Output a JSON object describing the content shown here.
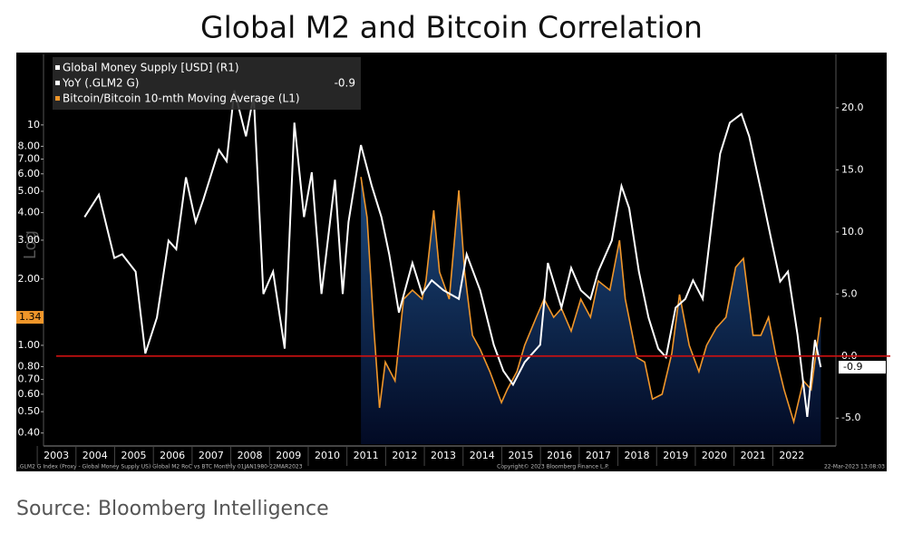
{
  "chart_data": {
    "type": "line",
    "title": "Global M2 and Bitcoin Correlation",
    "source": "Source: Bloomberg Intelligence",
    "footer_left": ".GLM2 G Index (Proxy - Global Money Supply US) Global M2 RoC vs BTC  Monthly 01JAN1980-22MAR2023",
    "footer_center": "Copyright© 2023 Bloomberg Finance L.P.",
    "footer_right": "22-Mar-2023 13:08:03",
    "ylabel": "Log",
    "legend_header": "Global Money Supply [USD] (R1)",
    "log_y": true,
    "xlim": [
      2002.67,
      2023.14
    ],
    "xticks": [
      2003,
      2004,
      2005,
      2006,
      2007,
      2008,
      2009,
      2010,
      2011,
      2012,
      2013,
      2014,
      2015,
      2016,
      2017,
      2018,
      2019,
      2020,
      2021,
      2022
    ],
    "ylim": [
      0.356,
      20.9
    ],
    "yticks": [
      {
        "value": 0.4,
        "label": "0.40"
      },
      {
        "value": 0.5,
        "label": "0.50"
      },
      {
        "value": 0.6,
        "label": "0.60"
      },
      {
        "value": 0.7,
        "label": "0.70"
      },
      {
        "value": 0.8,
        "label": "0.80"
      },
      {
        "value": 1,
        "label": "1.00"
      },
      {
        "value": 2,
        "label": "2.00"
      },
      {
        "value": 3,
        "label": "3.00"
      },
      {
        "value": 4,
        "label": "4.00"
      },
      {
        "value": 5,
        "label": "5.00"
      },
      {
        "value": 6,
        "label": "6.00"
      },
      {
        "value": 7,
        "label": "7.00"
      },
      {
        "value": 8,
        "label": "8.00"
      },
      10
    ],
    "y2lim": [
      -7.1,
      24.3
    ],
    "y2ticks": [
      {
        "value": -5,
        "label": "-5.0"
      },
      {
        "value": 0,
        "label": "0.0"
      },
      {
        "value": 5,
        "label": "5.0"
      },
      {
        "value": 10,
        "label": "10.0"
      },
      {
        "value": 15,
        "label": "15.0"
      },
      {
        "value": 20,
        "label": "20.0"
      }
    ],
    "hline": {
      "axis": "y2",
      "value": 0,
      "color": "#cc1111"
    },
    "legend": "upper left",
    "series": [
      {
        "name": "YoY (.GLM2 G)",
        "color": "#ffffff",
        "axis": "y2",
        "current": -0.9,
        "x": [
          2003.73,
          2004.1,
          2004.5,
          2004.7,
          2005.05,
          2005.3,
          2005.6,
          2005.9,
          2006.1,
          2006.35,
          2006.6,
          2006.8,
          2007.2,
          2007.4,
          2007.6,
          2007.9,
          2008.1,
          2008.35,
          2008.6,
          2008.9,
          2009.15,
          2009.4,
          2009.6,
          2009.85,
          2010.2,
          2010.4,
          2010.55,
          2010.87,
          2011.15,
          2011.4,
          2011.6,
          2011.85,
          2012.2,
          2012.45,
          2012.7,
          2013.0,
          2013.4,
          2013.6,
          2013.95,
          2014.3,
          2014.55,
          2014.8,
          2015.1,
          2015.5,
          2015.7,
          2016.05,
          2016.3,
          2016.55,
          2016.8,
          2017.0,
          2017.35,
          2017.6,
          2017.8,
          2018.05,
          2018.3,
          2018.55,
          2018.75,
          2019.0,
          2019.25,
          2019.45,
          2019.7,
          2019.95,
          2020.15,
          2020.4,
          2020.7,
          2020.9,
          2021.2,
          2021.45,
          2021.7,
          2021.9,
          2022.15,
          2022.4,
          2022.6,
          2022.75
        ],
        "values": [
          11.2,
          13.0,
          7.9,
          8.2,
          6.8,
          0.2,
          3.1,
          9.3,
          8.6,
          14.4,
          10.8,
          12.6,
          16.6,
          15.7,
          21.4,
          17.7,
          21.0,
          5.0,
          6.8,
          0.6,
          18.8,
          11.2,
          14.8,
          5.0,
          14.2,
          5.0,
          10.8,
          17.0,
          13.7,
          11.2,
          8.2,
          3.5,
          7.5,
          5.0,
          6.1,
          5.3,
          4.6,
          8.2,
          5.3,
          0.9,
          -1.2,
          -2.3,
          -0.5,
          0.9,
          7.5,
          3.9,
          7.1,
          5.3,
          4.6,
          6.8,
          9.3,
          13.7,
          11.9,
          6.8,
          3.1,
          0.6,
          -0.1,
          3.9,
          4.6,
          6.1,
          4.6,
          11.2,
          16.3,
          18.8,
          19.5,
          17.7,
          13.4,
          9.7,
          6.0,
          6.8,
          1.7,
          -4.9,
          1.3,
          -0.9
        ]
      },
      {
        "name": "Bitcoin/Bitcoin 10-mth Moving Average (L1)",
        "color": "#f0962a",
        "axis": "y",
        "current": 1.34,
        "x": [
          2010.87,
          2011.03,
          2011.2,
          2011.35,
          2011.5,
          2011.75,
          2011.97,
          2012.2,
          2012.45,
          2012.55,
          2012.75,
          2012.9,
          2013.15,
          2013.4,
          2013.55,
          2013.75,
          2013.95,
          2014.2,
          2014.5,
          2014.65,
          2014.9,
          2015.1,
          2015.4,
          2015.6,
          2015.85,
          2016.05,
          2016.3,
          2016.55,
          2016.8,
          2017.0,
          2017.3,
          2017.55,
          2017.7,
          2018.0,
          2018.2,
          2018.4,
          2018.65,
          2018.9,
          2019.1,
          2019.35,
          2019.6,
          2019.8,
          2020.05,
          2020.3,
          2020.55,
          2020.75,
          2021.0,
          2021.2,
          2021.4,
          2021.6,
          2021.8,
          2022.05,
          2022.3,
          2022.5,
          2022.75
        ],
        "values": [
          5.8,
          3.8,
          1.22,
          0.52,
          0.84,
          0.69,
          1.62,
          1.78,
          1.62,
          1.96,
          4.1,
          2.15,
          1.62,
          5.05,
          2.15,
          1.11,
          0.96,
          0.76,
          0.55,
          0.63,
          0.76,
          1.0,
          1.34,
          1.62,
          1.34,
          1.47,
          1.16,
          1.62,
          1.34,
          1.96,
          1.78,
          3.0,
          1.62,
          0.88,
          0.84,
          0.57,
          0.6,
          0.92,
          1.7,
          1.0,
          0.76,
          1.0,
          1.2,
          1.34,
          2.26,
          2.48,
          1.11,
          1.11,
          1.34,
          0.88,
          0.63,
          0.45,
          0.69,
          0.63,
          1.34
        ]
      }
    ]
  }
}
